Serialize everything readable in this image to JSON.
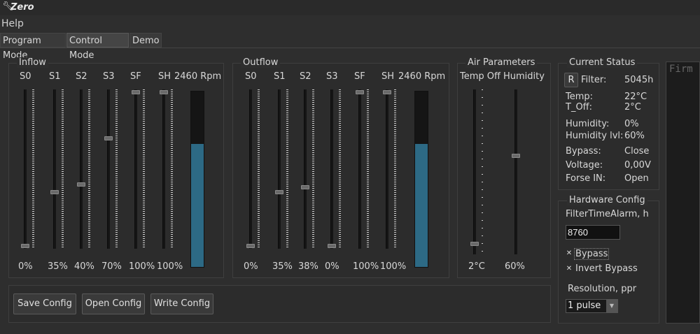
{
  "app": {
    "title": "Zero",
    "icon": "wrench-icon"
  },
  "menu": [
    "Help"
  ],
  "tabs": [
    {
      "label": "Program Mode"
    },
    {
      "label": "Control Mode",
      "active": true
    },
    {
      "label": "Demo"
    }
  ],
  "inflow": {
    "title": "Inflow",
    "sliders": [
      {
        "label": "S0",
        "value": "0%",
        "level": 0
      },
      {
        "label": "S1",
        "value": "35%",
        "level": 35
      },
      {
        "label": "S2",
        "value": "40%",
        "level": 40
      },
      {
        "label": "S3",
        "value": "70%",
        "level": 70
      },
      {
        "label": "SF",
        "value": "100%",
        "level": 100
      },
      {
        "label": "SH",
        "value": "100%",
        "level": 100
      }
    ],
    "rpm": {
      "label": "2460 Rpm",
      "level": 70
    }
  },
  "outflow": {
    "title": "Outflow",
    "sliders": [
      {
        "label": "S0",
        "value": "0%",
        "level": 0
      },
      {
        "label": "S1",
        "value": "35%",
        "level": 35
      },
      {
        "label": "S2",
        "value": "38%",
        "level": 38
      },
      {
        "label": "S3",
        "value": "0%",
        "level": 0
      },
      {
        "label": "SF",
        "value": "100%",
        "level": 100
      },
      {
        "label": "SH",
        "value": "100%",
        "level": 100
      }
    ],
    "rpm": {
      "label": "2460 Rpm",
      "level": 70
    }
  },
  "air": {
    "title": "Air Parameters",
    "temp": {
      "label": "Temp Off",
      "value": "2°C",
      "level": 2
    },
    "humidity": {
      "label": "Humidity",
      "value": "60%",
      "level": 60
    }
  },
  "status": {
    "title": "Current Status",
    "reset_label": "R",
    "filter_label": "Filter:",
    "filter_value": "5045h",
    "temp_label": "Temp:",
    "temp_value": "22°C",
    "toff_label": "T_Off:",
    "toff_value": "2°C",
    "humidity_label": "Humidity:",
    "humidity_value": "0%",
    "humlvl_label": "Humidity lvl:",
    "humlvl_value": "60%",
    "bypass_label": "Bypass:",
    "bypass_value": "Close",
    "voltage_label": "Voltage:",
    "voltage_value": "0,00V",
    "forse_label": "Forse IN:",
    "forse_value": "Open"
  },
  "hardware": {
    "title": "Hardware Config",
    "filter_alarm_label": "FilterTimeAlarm, h",
    "filter_alarm_value": "8760",
    "bypass_checkbox": {
      "label": "Bypass",
      "checked": true
    },
    "invert_bypass_checkbox": {
      "label": "Invert Bypass",
      "checked": true
    },
    "resolution_label": "Resolution, ppr",
    "resolution_value": "1 pulse"
  },
  "buttons": {
    "save": "Save Config",
    "open": "Open Config",
    "write": "Write Config"
  },
  "console": {
    "text": "Firm"
  },
  "colors": {
    "rpm_fill": "#2d6a85",
    "background": "#2e2e2e"
  }
}
